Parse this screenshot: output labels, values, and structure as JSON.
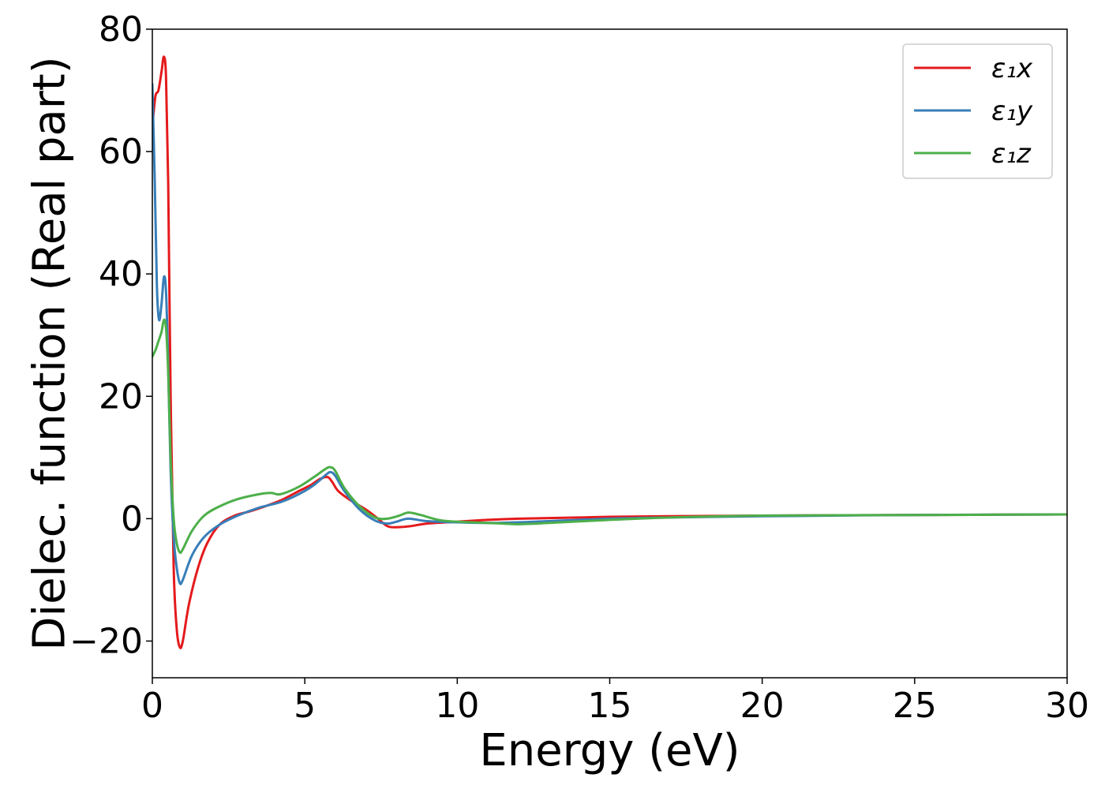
{
  "chart_data": {
    "type": "line",
    "title": "",
    "xlabel": "Energy (eV)",
    "ylabel": "Dielec. function (Real part)",
    "xlim": [
      0,
      30
    ],
    "ylim": [
      -26,
      80
    ],
    "xticks": [
      0,
      5,
      10,
      15,
      20,
      25,
      30
    ],
    "yticks": [
      -20,
      0,
      20,
      40,
      60,
      80
    ],
    "xtick_labels": [
      "0",
      "5",
      "10",
      "15",
      "20",
      "25",
      "30"
    ],
    "ytick_labels": [
      "−20",
      "0",
      "20",
      "40",
      "60",
      "80"
    ],
    "grid": false,
    "legend": "top-right",
    "series": [
      {
        "name": "ε₁x",
        "color": "#e41a1c",
        "x": [
          0,
          0.1,
          0.2,
          0.3,
          0.38,
          0.45,
          0.52,
          0.6,
          0.7,
          0.8,
          0.9,
          1.0,
          1.2,
          1.5,
          1.8,
          2.2,
          2.7,
          3.2,
          3.8,
          4.3,
          4.8,
          5.2,
          5.5,
          5.75,
          5.9,
          6.1,
          6.5,
          7.0,
          7.4,
          7.7,
          8.0,
          8.5,
          9.0,
          10,
          11,
          12,
          13,
          14,
          15,
          17,
          20,
          25,
          30
        ],
        "y": [
          64,
          69,
          70,
          73,
          75.5,
          72,
          55,
          20,
          -8,
          -18,
          -21,
          -20,
          -14,
          -8,
          -4,
          -1,
          0.5,
          1.2,
          2.2,
          3.2,
          4.5,
          5.5,
          6.5,
          6.8,
          6.0,
          4.5,
          3,
          1.5,
          0,
          -1.2,
          -1.4,
          -1.2,
          -0.8,
          -0.5,
          -0.2,
          0,
          0.1,
          0.2,
          0.3,
          0.4,
          0.5,
          0.6,
          0.7
        ]
      },
      {
        "name": "ε₁y",
        "color": "#377eb8",
        "x": [
          0,
          0.08,
          0.15,
          0.22,
          0.3,
          0.38,
          0.45,
          0.52,
          0.6,
          0.7,
          0.8,
          0.9,
          1.0,
          1.3,
          1.7,
          2.2,
          2.8,
          3.5,
          4.2,
          4.8,
          5.3,
          5.7,
          5.85,
          6.0,
          6.3,
          6.8,
          7.3,
          7.7,
          8.0,
          8.4,
          9.0,
          10,
          11,
          12,
          13,
          15,
          17,
          20,
          25,
          30
        ],
        "y": [
          71,
          55,
          38,
          32.5,
          35,
          39.5,
          37,
          25,
          8,
          -3,
          -8,
          -10.5,
          -10,
          -6,
          -3,
          -1,
          0.5,
          1.8,
          2.7,
          4,
          5.5,
          7.2,
          7.6,
          7.0,
          4.5,
          1.5,
          -0.3,
          -0.8,
          -0.5,
          0,
          -0.4,
          -0.6,
          -0.7,
          -0.6,
          -0.4,
          0,
          0.2,
          0.4,
          0.6,
          0.7
        ]
      },
      {
        "name": "ε₁z",
        "color": "#4daf4a",
        "x": [
          0,
          0.1,
          0.2,
          0.3,
          0.38,
          0.45,
          0.52,
          0.6,
          0.7,
          0.8,
          0.9,
          1.0,
          1.3,
          1.7,
          2.2,
          2.8,
          3.5,
          3.9,
          4.2,
          4.8,
          5.3,
          5.7,
          5.85,
          6.0,
          6.3,
          6.8,
          7.3,
          7.7,
          8.1,
          8.4,
          8.8,
          9.5,
          10.5,
          11.5,
          12,
          13,
          15,
          17,
          20,
          25,
          30
        ],
        "y": [
          26.5,
          27.5,
          29,
          30.5,
          32.5,
          31,
          24,
          10,
          0,
          -4,
          -5.5,
          -5,
          -2,
          0.5,
          2,
          3.2,
          4,
          4.2,
          4.0,
          5.2,
          6.8,
          8.2,
          8.4,
          7.8,
          5,
          2,
          0.2,
          0,
          0.5,
          1.0,
          0.6,
          -0.3,
          -0.6,
          -0.8,
          -0.9,
          -0.7,
          -0.2,
          0.2,
          0.5,
          0.6,
          0.7
        ]
      }
    ]
  }
}
